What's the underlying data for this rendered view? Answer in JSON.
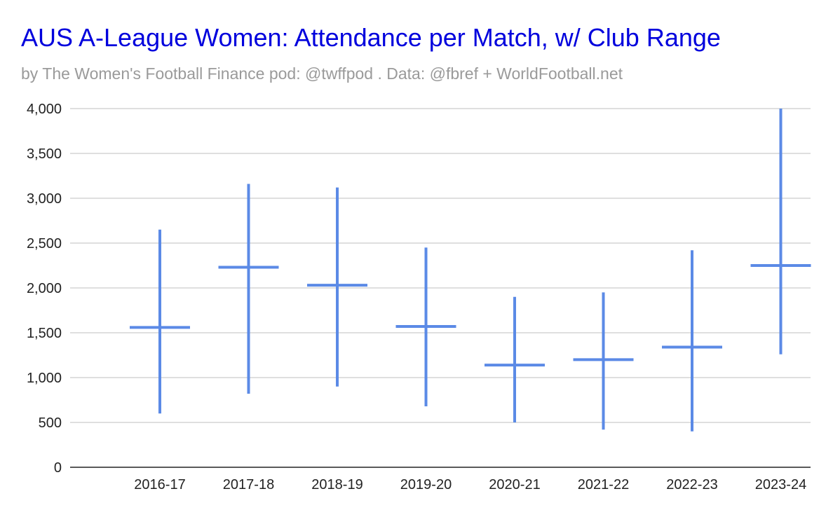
{
  "chart_data": {
    "type": "range",
    "title": "AUS A-League Women: Attendance per Match, w/ Club Range",
    "subtitle": "by The Women's Football Finance pod: @twffpod .  Data: @fbref + WorldFootball.net",
    "xlabel": "",
    "ylabel": "",
    "categories": [
      "2016-17",
      "2017-18",
      "2018-19",
      "2019-20",
      "2020-21",
      "2021-22",
      "2022-23",
      "2023-24"
    ],
    "series": [
      {
        "values": [
          1560,
          2230,
          2030,
          1570,
          1140,
          1200,
          1340,
          2250
        ]
      }
    ],
    "low": [
      600,
      820,
      900,
      680,
      500,
      420,
      400,
      1260
    ],
    "high": [
      2650,
      3160,
      3120,
      2450,
      1900,
      1950,
      2420,
      4000
    ],
    "ylim": [
      0,
      4000
    ],
    "yticks": [
      0,
      500,
      1000,
      1500,
      2000,
      2500,
      3000,
      3500,
      4000
    ],
    "ytick_labels": [
      "0",
      "500",
      "1,000",
      "1,500",
      "2,000",
      "2,500",
      "3,000",
      "3,500",
      "4,000"
    ],
    "grid": true,
    "legend": "none",
    "colors": {
      "series": "#5b8ae6",
      "title": "#0000dd",
      "subtitle": "#9a9a9a",
      "grid": "#cccccc",
      "axis": "#222222"
    }
  }
}
